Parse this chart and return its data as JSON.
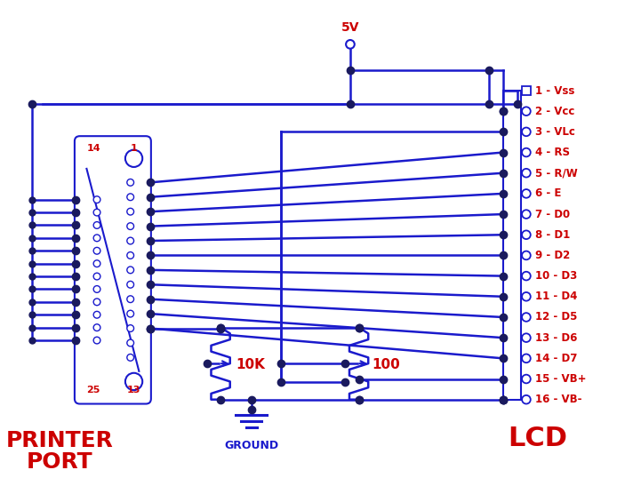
{
  "bg": "#ffffff",
  "blue": "#1a1acc",
  "red": "#cc0000",
  "node": "#1a1a5e",
  "lcd_pins": [
    "1 - Vss",
    "2 - Vcc",
    "3 - VLc",
    "4 - RS",
    "5 - R/W",
    "6 - E",
    "7 - D0",
    "8 - D1",
    "9 - D2",
    "10 - D3",
    "11 - D4",
    "12 - D5",
    "13 - D6",
    "14 - D7",
    "15 - VB+",
    "16 - VB-"
  ],
  "fig_w": 7.03,
  "fig_h": 5.47,
  "dpi": 100
}
